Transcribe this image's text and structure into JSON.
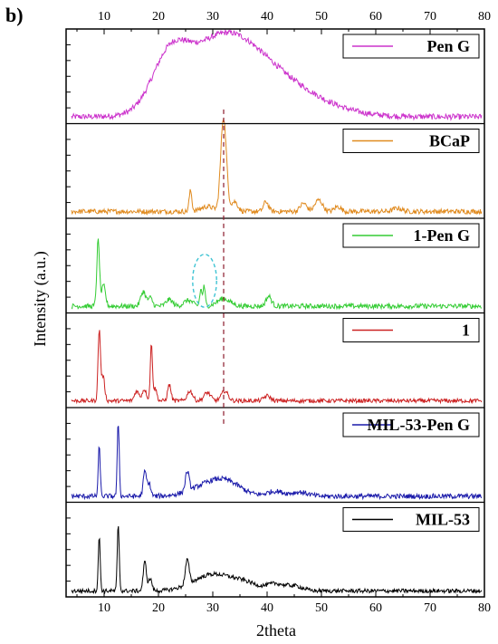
{
  "panel_label": "b)",
  "chart_data": {
    "type": "line",
    "title": "",
    "xlabel": "2theta",
    "ylabel": "Intensity (a.u.)",
    "xlim": [
      3,
      80
    ],
    "xticks_top": [
      10,
      20,
      30,
      40,
      50,
      60,
      70,
      80
    ],
    "xticks_bottom": [
      10,
      20,
      30,
      40,
      50,
      60,
      70,
      80
    ],
    "grid": false,
    "legend_placement": "top-right of each panel",
    "reference_line_x": 32,
    "reference_line_color": "#8b1a2b",
    "highlight_circle": {
      "panel": "1-Pen G",
      "x_center": 28.5,
      "x_halfwidth": 2.2,
      "color": "#40c4d4"
    },
    "series": [
      {
        "name": "Pen G",
        "color": "#cc33cc",
        "baseline": 0.05,
        "noise": 0.035,
        "peaks": [
          [
            22,
            0.55,
            3.2
          ],
          [
            31,
            0.74,
            6.5
          ],
          [
            40,
            0.45,
            8.5
          ]
        ]
      },
      {
        "name": "BCaP",
        "color": "#e08a1e",
        "baseline": 0.05,
        "noise": 0.03,
        "peaks": [
          [
            25.9,
            0.25,
            0.25
          ],
          [
            29,
            0.06,
            1.2
          ],
          [
            31.8,
            0.8,
            0.45
          ],
          [
            32.3,
            0.52,
            0.45
          ],
          [
            34,
            0.12,
            0.6
          ],
          [
            39.8,
            0.12,
            0.45
          ],
          [
            46.7,
            0.1,
            0.6
          ],
          [
            49.5,
            0.14,
            0.7
          ],
          [
            53,
            0.06,
            0.6
          ],
          [
            64,
            0.04,
            0.8
          ]
        ]
      },
      {
        "name": "1-Pen G",
        "color": "#33cc33",
        "baseline": 0.05,
        "noise": 0.03,
        "peaks": [
          [
            8.9,
            0.8,
            0.25
          ],
          [
            9.9,
            0.25,
            0.35
          ],
          [
            17.2,
            0.18,
            0.45
          ],
          [
            18.5,
            0.1,
            0.4
          ],
          [
            22,
            0.08,
            0.6
          ],
          [
            25.5,
            0.07,
            0.8
          ],
          [
            27.8,
            0.2,
            0.2
          ],
          [
            28.4,
            0.24,
            0.2
          ],
          [
            32,
            0.09,
            1.2
          ],
          [
            40.3,
            0.12,
            0.5
          ]
        ]
      },
      {
        "name": "1",
        "color": "#cc2222",
        "baseline": 0.05,
        "noise": 0.025,
        "peaks": [
          [
            9.1,
            0.85,
            0.22
          ],
          [
            9.8,
            0.3,
            0.3
          ],
          [
            16,
            0.12,
            0.4
          ],
          [
            17.4,
            0.14,
            0.4
          ],
          [
            18.7,
            0.68,
            0.2
          ],
          [
            19.4,
            0.15,
            0.3
          ],
          [
            22,
            0.2,
            0.3
          ],
          [
            25.8,
            0.12,
            0.5
          ],
          [
            29,
            0.1,
            0.6
          ],
          [
            32.2,
            0.12,
            0.6
          ],
          [
            40,
            0.06,
            0.6
          ]
        ]
      },
      {
        "name": "MIL-53-Pen G",
        "color": "#1a1aaa",
        "baseline": 0.04,
        "noise": 0.03,
        "peaks": [
          [
            9.1,
            0.6,
            0.18
          ],
          [
            12.6,
            0.9,
            0.18
          ],
          [
            17.5,
            0.3,
            0.3
          ],
          [
            18.3,
            0.15,
            0.3
          ],
          [
            25.3,
            0.24,
            0.35
          ],
          [
            30,
            0.16,
            3.5
          ],
          [
            33,
            0.08,
            2.5
          ],
          [
            41.5,
            0.06,
            1.5
          ],
          [
            46,
            0.05,
            1.5
          ]
        ]
      },
      {
        "name": "MIL-53",
        "color": "#000000",
        "baseline": 0.04,
        "noise": 0.025,
        "peaks": [
          [
            9.1,
            0.65,
            0.18
          ],
          [
            12.6,
            0.8,
            0.18
          ],
          [
            17.5,
            0.35,
            0.3
          ],
          [
            18.5,
            0.15,
            0.3
          ],
          [
            25.3,
            0.3,
            0.35
          ],
          [
            30,
            0.2,
            3.5
          ],
          [
            36,
            0.08,
            2.5
          ],
          [
            41.5,
            0.08,
            1.5
          ],
          [
            45,
            0.06,
            1.5
          ]
        ]
      }
    ]
  }
}
